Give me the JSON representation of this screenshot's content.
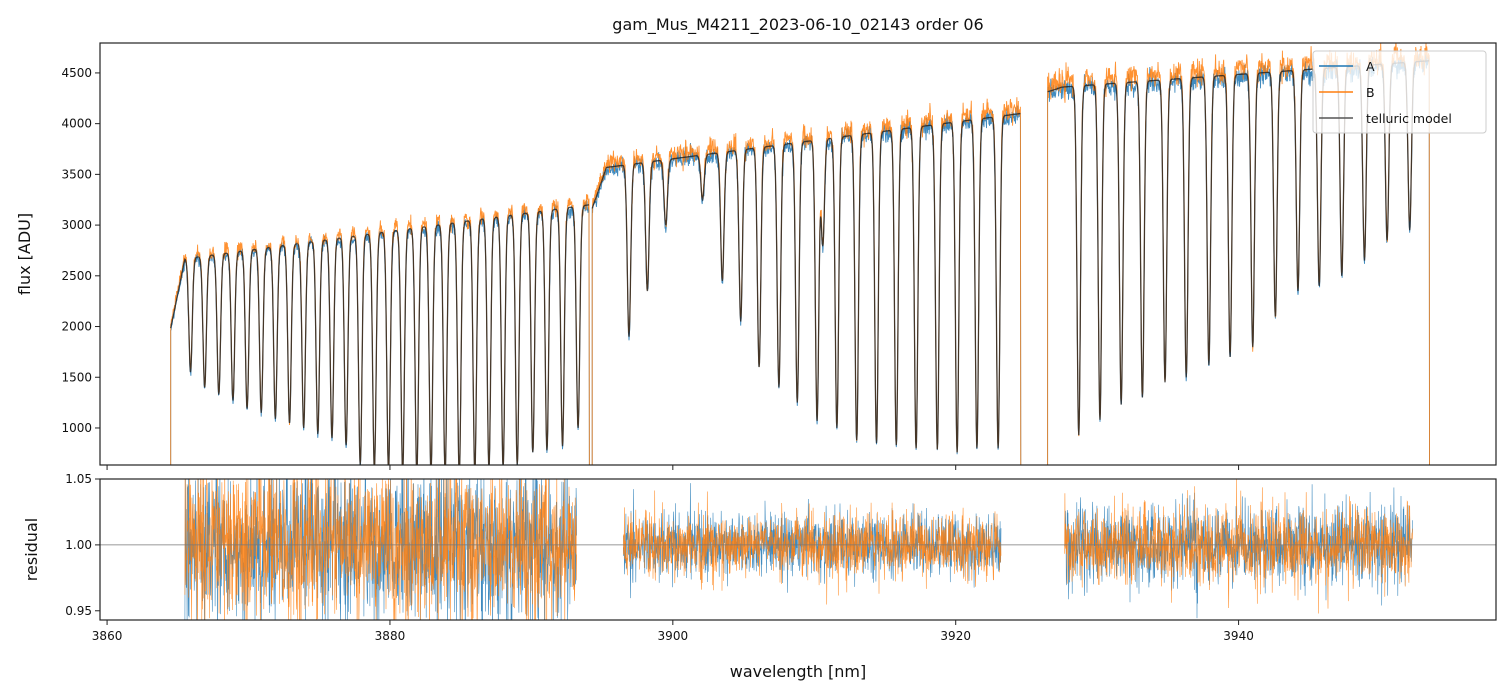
{
  "chart_data": {
    "type": "line",
    "title": "gam_Mus_M4211_2023-06-10_02143  order 06",
    "xlabel": "wavelength [nm]",
    "xlim": [
      3859.5,
      3958.2
    ],
    "xticks": [
      3860,
      3880,
      3900,
      3920,
      3940
    ],
    "xtick_labels": [
      "3860",
      "3880",
      "3900",
      "3920",
      "3940"
    ],
    "legend": {
      "placement": "top-right",
      "entries": [
        "A",
        "B",
        "telluric model"
      ]
    },
    "colors": {
      "A": "#1f77b4",
      "B": "#ff7f0e",
      "model": "#222222",
      "ref_line": "#777777"
    },
    "flux_panel": {
      "ylabel": "flux [ADU]",
      "ylim": [
        635,
        4795
      ],
      "yticks": [
        1000,
        1500,
        2000,
        2500,
        3000,
        3500,
        4000,
        4500
      ],
      "ytick_labels": [
        "1000",
        "1500",
        "2000",
        "2500",
        "3000",
        "3500",
        "4000",
        "4500"
      ],
      "segments": [
        {
          "start": 3864.5,
          "end": 3894.1,
          "continuum": [
            2650,
            3200
          ],
          "rise_from": 1700,
          "lines": [
            [
              3865.9,
              1550
            ],
            [
              3866.9,
              1400
            ],
            [
              3867.9,
              1330
            ],
            [
              3868.9,
              1270
            ],
            [
              3869.9,
              1190
            ],
            [
              3870.9,
              1150
            ],
            [
              3871.9,
              1090
            ],
            [
              3872.9,
              1050
            ],
            [
              3873.9,
              1000
            ],
            [
              3874.9,
              940
            ],
            [
              3875.9,
              900
            ],
            [
              3876.9,
              830
            ],
            [
              3877.9,
              640
            ],
            [
              3878.9,
              600
            ],
            [
              3879.9,
              580
            ],
            [
              3880.9,
              560
            ],
            [
              3881.9,
              550
            ],
            [
              3882.9,
              550
            ],
            [
              3883.9,
              550
            ],
            [
              3884.9,
              550
            ],
            [
              3886.0,
              560
            ],
            [
              3887.0,
              600
            ],
            [
              3888.0,
              620
            ],
            [
              3889.0,
              640
            ],
            [
              3890.1,
              760
            ],
            [
              3891.1,
              780
            ],
            [
              3892.2,
              820
            ],
            [
              3893.3,
              1000
            ]
          ]
        },
        {
          "start": 3894.3,
          "end": 3924.6,
          "continuum": [
            3550,
            4100
          ],
          "rise_from": 3000,
          "lines": [
            [
              3896.9,
              1900
            ],
            [
              3898.2,
              2350
            ],
            [
              3899.5,
              3000
            ],
            [
              3902.1,
              3250
            ],
            [
              3903.5,
              2450
            ],
            [
              3904.8,
              2050
            ],
            [
              3906.1,
              1600
            ],
            [
              3907.5,
              1400
            ],
            [
              3908.8,
              1250
            ],
            [
              3910.2,
              1070
            ],
            [
              3910.6,
              2800
            ],
            [
              3911.6,
              1000
            ],
            [
              3913.0,
              880
            ],
            [
              3914.4,
              850
            ],
            [
              3915.8,
              830
            ],
            [
              3917.2,
              800
            ],
            [
              3918.7,
              790
            ],
            [
              3920.1,
              760
            ],
            [
              3921.5,
              800
            ],
            [
              3923.0,
              800
            ]
          ]
        },
        {
          "start": 3926.5,
          "end": 3953.5,
          "continuum": [
            4350,
            4620
          ],
          "rise_from": 4300,
          "lines": [
            [
              3928.7,
              930
            ],
            [
              3930.2,
              1080
            ],
            [
              3931.7,
              1230
            ],
            [
              3933.2,
              1300
            ],
            [
              3934.8,
              1450
            ],
            [
              3936.3,
              1500
            ],
            [
              3937.9,
              1620
            ],
            [
              3939.4,
              1700
            ],
            [
              3941.0,
              1800
            ],
            [
              3942.6,
              2100
            ],
            [
              3944.2,
              2350
            ],
            [
              3945.7,
              2400
            ],
            [
              3947.3,
              2500
            ],
            [
              3948.9,
              2650
            ],
            [
              3950.5,
              2850
            ],
            [
              3952.1,
              2950
            ]
          ]
        }
      ]
    },
    "residual_panel": {
      "ylabel": "residual",
      "ylim": [
        0.943,
        1.05
      ],
      "yticks": [
        0.95,
        1.0,
        1.05
      ],
      "ytick_labels": [
        "0.95",
        "1.00",
        "1.05"
      ],
      "reference": 1.0,
      "segments": [
        {
          "start": 3865.5,
          "end": 3893.2,
          "scatter": 0.03
        },
        {
          "start": 3896.5,
          "end": 3923.2,
          "scatter": 0.012
        },
        {
          "start": 3927.7,
          "end": 3952.3,
          "scatter": 0.015
        }
      ]
    }
  }
}
